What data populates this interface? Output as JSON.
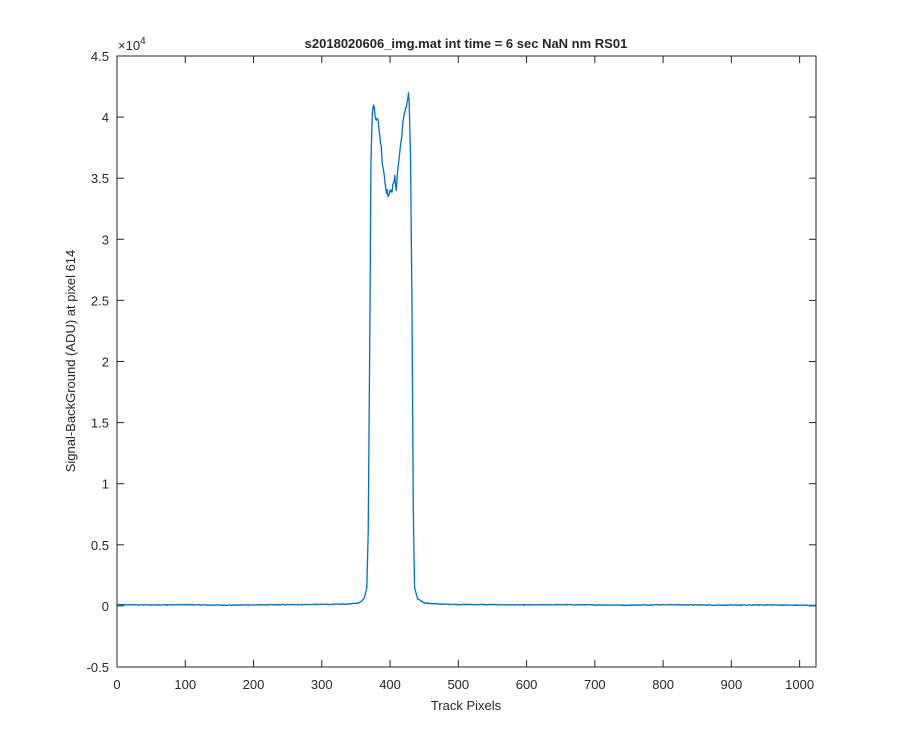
{
  "chart_data": {
    "type": "line",
    "title": "s2018020606_img.mat int time = 6 sec  NaN nm RS01",
    "xlabel": "Track Pixels",
    "ylabel": "Signal-BackGround (ADU) at pixel 614",
    "y_exponent_label": "×10",
    "y_exponent_power": "4",
    "xlim": [
      0,
      1024
    ],
    "ylim": [
      -0.5,
      4.5
    ],
    "y_scale_factor": 10000,
    "xticks": [
      0,
      100,
      200,
      300,
      400,
      500,
      600,
      700,
      800,
      900,
      1000
    ],
    "xtick_labels": [
      "0",
      "100",
      "200",
      "300",
      "400",
      "500",
      "600",
      "700",
      "800",
      "900",
      "1000"
    ],
    "yticks": [
      -0.5,
      0,
      0.5,
      1,
      1.5,
      2,
      2.5,
      3,
      3.5,
      4,
      4.5
    ],
    "ytick_labels": [
      "-0.5",
      "0",
      "0.5",
      "1",
      "1.5",
      "2",
      "2.5",
      "3",
      "3.5",
      "4",
      "4.5"
    ],
    "grid": false,
    "line_color": "#0072BD",
    "series": [
      {
        "x": [
          0,
          50,
          100,
          150,
          200,
          250,
          300,
          340,
          355,
          362,
          366,
          368,
          370,
          372,
          374,
          376,
          377,
          379,
          381,
          383,
          385,
          387,
          389,
          391,
          393,
          395,
          397,
          399,
          401,
          403,
          405,
          407,
          409,
          411,
          413,
          415,
          417,
          419,
          421,
          423,
          425,
          427,
          428,
          430,
          432,
          434,
          436,
          440,
          450,
          470,
          500,
          550,
          600,
          650,
          700,
          750,
          800,
          850,
          900,
          950,
          1000,
          1024
        ],
        "y": [
          0.01,
          0.008,
          0.01,
          0.006,
          0.008,
          0.01,
          0.012,
          0.015,
          0.025,
          0.06,
          0.15,
          0.6,
          2.0,
          3.6,
          4.05,
          4.09,
          4.08,
          4.0,
          3.98,
          3.95,
          3.85,
          3.75,
          3.62,
          3.55,
          3.45,
          3.4,
          3.37,
          3.35,
          3.42,
          3.4,
          3.45,
          3.5,
          3.42,
          3.55,
          3.65,
          3.75,
          3.85,
          3.95,
          4.02,
          4.08,
          4.12,
          4.2,
          4.1,
          3.7,
          2.5,
          0.8,
          0.15,
          0.06,
          0.025,
          0.015,
          0.012,
          0.01,
          0.008,
          0.01,
          0.008,
          0.006,
          0.01,
          0.008,
          0.006,
          0.008,
          0.006,
          0.004
        ]
      }
    ]
  }
}
